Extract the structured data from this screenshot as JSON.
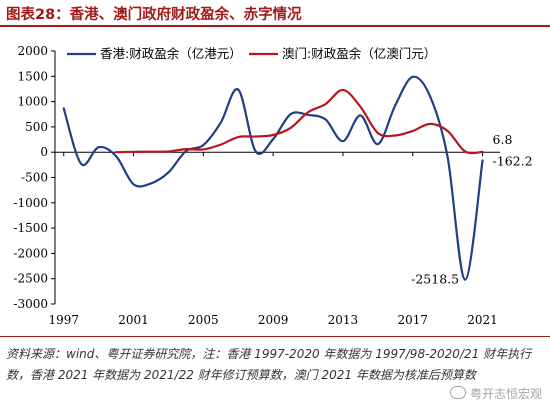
{
  "figure": {
    "title": "图表28：香港、澳门政府财政盈余、赤字情况",
    "source_note": "资料来源：wind、粤开证券研究院，注：香港 1997-2020 年数据为 1997/98-2020/21 财年执行数，香港 2021 年数据为 2021/22 财年修订预算数，澳门 2021 年数据为核准后预算数",
    "watermark": "粤开志恒宏观",
    "watermark_icon": "wechat-icon"
  },
  "chart_data": {
    "type": "line",
    "xlim": [
      1996.5,
      2022
    ],
    "ylim": [
      -3000,
      2000
    ],
    "x_ticks": [
      1997,
      2001,
      2005,
      2009,
      2013,
      2017,
      2021
    ],
    "y_ticks": [
      2000,
      1500,
      1000,
      500,
      0,
      -500,
      -1000,
      -1500,
      -2000,
      -2500,
      -3000
    ],
    "legend_position": "top",
    "grid": false,
    "series": [
      {
        "name": "香港:财政盈余（亿港元）",
        "color": "#1f3f86",
        "x": [
          1997,
          1998,
          1999,
          2000,
          2001,
          2002,
          2003,
          2004,
          2005,
          2006,
          2007,
          2008,
          2009,
          2010,
          2011,
          2012,
          2013,
          2014,
          2015,
          2016,
          2017,
          2018,
          2019,
          2020,
          2021
        ],
        "values": [
          865,
          -230,
          100,
          -78,
          -633,
          -617,
          -401,
          21,
          140,
          586,
          1237,
          15,
          259,
          751,
          737,
          648,
          218,
          727,
          160,
          928,
          1489,
          1100,
          -102,
          -2518.5,
          -162.2
        ]
      },
      {
        "name": "澳门:财政盈余（亿澳门元）",
        "color": "#b8161c",
        "x": [
          2000,
          2001,
          2002,
          2003,
          2004,
          2005,
          2006,
          2007,
          2008,
          2009,
          2010,
          2011,
          2012,
          2013,
          2014,
          2015,
          2016,
          2017,
          2018,
          2019,
          2020,
          2021
        ],
        "values": [
          0,
          8,
          10,
          15,
          60,
          55,
          150,
          300,
          310,
          340,
          480,
          790,
          950,
          1230,
          900,
          380,
          330,
          420,
          560,
          420,
          15,
          6.8
        ]
      }
    ],
    "annotations": [
      {
        "text": "6.8",
        "x": 2021,
        "y": 6.8,
        "series": 1
      },
      {
        "text": "-162.2",
        "x": 2021,
        "y": -162.2,
        "series": 0
      },
      {
        "text": "-2518.5",
        "x": 2020,
        "y": -2518.5,
        "series": 0
      }
    ]
  }
}
